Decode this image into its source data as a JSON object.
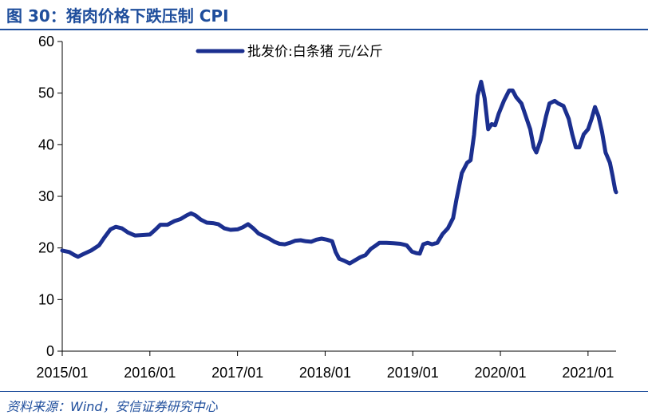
{
  "figure": {
    "title": "图 30：猪肉价格下跌压制 CPI",
    "source": "资料来源：Wind，安信证券研究中心"
  },
  "colors": {
    "series": "#1b2f8f",
    "title": "#1f4e9c",
    "axis": "#000000"
  },
  "chart_data": {
    "type": "line",
    "title": "",
    "xlabel": "",
    "ylabel": "",
    "ylim": [
      0,
      60
    ],
    "yticks": [
      0,
      10,
      20,
      30,
      40,
      50,
      60
    ],
    "xlim": [
      2015.0,
      2021.32
    ],
    "xticks": [
      {
        "x": 2015.0,
        "label": "2015/01"
      },
      {
        "x": 2016.0,
        "label": "2016/01"
      },
      {
        "x": 2017.0,
        "label": "2017/01"
      },
      {
        "x": 2018.0,
        "label": "2018/01"
      },
      {
        "x": 2019.0,
        "label": "2019/01"
      },
      {
        "x": 2020.0,
        "label": "2020/01"
      },
      {
        "x": 2021.0,
        "label": "2021/01"
      }
    ],
    "grid": false,
    "legend_position": "top-center",
    "series": [
      {
        "name": "批发价:白条猪 元/公斤",
        "points": [
          [
            2015.0,
            19.5
          ],
          [
            2015.08,
            19.2
          ],
          [
            2015.14,
            18.6
          ],
          [
            2015.18,
            18.3
          ],
          [
            2015.24,
            18.8
          ],
          [
            2015.33,
            19.5
          ],
          [
            2015.42,
            20.5
          ],
          [
            2015.48,
            22.0
          ],
          [
            2015.55,
            23.6
          ],
          [
            2015.61,
            24.1
          ],
          [
            2015.68,
            23.8
          ],
          [
            2015.75,
            23.0
          ],
          [
            2015.83,
            22.4
          ],
          [
            2015.92,
            22.5
          ],
          [
            2016.0,
            22.6
          ],
          [
            2016.06,
            23.5
          ],
          [
            2016.12,
            24.5
          ],
          [
            2016.2,
            24.5
          ],
          [
            2016.28,
            25.2
          ],
          [
            2016.35,
            25.6
          ],
          [
            2016.42,
            26.3
          ],
          [
            2016.47,
            26.7
          ],
          [
            2016.52,
            26.3
          ],
          [
            2016.58,
            25.5
          ],
          [
            2016.65,
            24.9
          ],
          [
            2016.72,
            24.8
          ],
          [
            2016.78,
            24.6
          ],
          [
            2016.85,
            23.8
          ],
          [
            2016.92,
            23.5
          ],
          [
            2017.0,
            23.6
          ],
          [
            2017.06,
            24.0
          ],
          [
            2017.12,
            24.6
          ],
          [
            2017.18,
            23.8
          ],
          [
            2017.24,
            22.8
          ],
          [
            2017.3,
            22.3
          ],
          [
            2017.36,
            21.8
          ],
          [
            2017.42,
            21.2
          ],
          [
            2017.48,
            20.8
          ],
          [
            2017.54,
            20.7
          ],
          [
            2017.6,
            21.0
          ],
          [
            2017.66,
            21.4
          ],
          [
            2017.72,
            21.5
          ],
          [
            2017.78,
            21.3
          ],
          [
            2017.84,
            21.2
          ],
          [
            2017.9,
            21.6
          ],
          [
            2017.96,
            21.8
          ],
          [
            2018.02,
            21.6
          ],
          [
            2018.08,
            21.3
          ],
          [
            2018.12,
            19.2
          ],
          [
            2018.16,
            17.9
          ],
          [
            2018.22,
            17.5
          ],
          [
            2018.28,
            17.0
          ],
          [
            2018.34,
            17.6
          ],
          [
            2018.4,
            18.2
          ],
          [
            2018.46,
            18.6
          ],
          [
            2018.52,
            19.8
          ],
          [
            2018.58,
            20.5
          ],
          [
            2018.62,
            21.0
          ],
          [
            2018.7,
            21.0
          ],
          [
            2018.78,
            20.9
          ],
          [
            2018.86,
            20.8
          ],
          [
            2018.93,
            20.5
          ],
          [
            2018.99,
            19.3
          ],
          [
            2019.04,
            19.0
          ],
          [
            2019.08,
            18.9
          ],
          [
            2019.12,
            20.7
          ],
          [
            2019.17,
            21.0
          ],
          [
            2019.22,
            20.7
          ],
          [
            2019.28,
            21.0
          ],
          [
            2019.34,
            22.7
          ],
          [
            2019.4,
            23.8
          ],
          [
            2019.46,
            25.8
          ],
          [
            2019.5,
            29.5
          ],
          [
            2019.56,
            34.5
          ],
          [
            2019.62,
            36.5
          ],
          [
            2019.66,
            37.0
          ],
          [
            2019.7,
            42.0
          ],
          [
            2019.74,
            49.5
          ],
          [
            2019.78,
            52.2
          ],
          [
            2019.82,
            49.0
          ],
          [
            2019.86,
            43.0
          ],
          [
            2019.9,
            44.0
          ],
          [
            2019.94,
            43.8
          ],
          [
            2019.98,
            46.0
          ],
          [
            2020.04,
            48.5
          ],
          [
            2020.1,
            50.5
          ],
          [
            2020.14,
            50.5
          ],
          [
            2020.18,
            49.2
          ],
          [
            2020.24,
            48.0
          ],
          [
            2020.3,
            45.0
          ],
          [
            2020.34,
            43.0
          ],
          [
            2020.38,
            39.5
          ],
          [
            2020.41,
            38.5
          ],
          [
            2020.46,
            41.0
          ],
          [
            2020.52,
            45.5
          ],
          [
            2020.56,
            48.0
          ],
          [
            2020.62,
            48.5
          ],
          [
            2020.66,
            48.0
          ],
          [
            2020.72,
            47.5
          ],
          [
            2020.78,
            45.0
          ],
          [
            2020.82,
            42.0
          ],
          [
            2020.86,
            39.5
          ],
          [
            2020.9,
            39.5
          ],
          [
            2020.95,
            42.0
          ],
          [
            2021.0,
            43.0
          ],
          [
            2021.04,
            45.0
          ],
          [
            2021.08,
            47.3
          ],
          [
            2021.12,
            45.5
          ],
          [
            2021.16,
            42.5
          ],
          [
            2021.2,
            38.5
          ],
          [
            2021.25,
            36.5
          ],
          [
            2021.28,
            34.0
          ],
          [
            2021.31,
            31.2
          ],
          [
            2021.32,
            30.8
          ]
        ]
      }
    ]
  }
}
